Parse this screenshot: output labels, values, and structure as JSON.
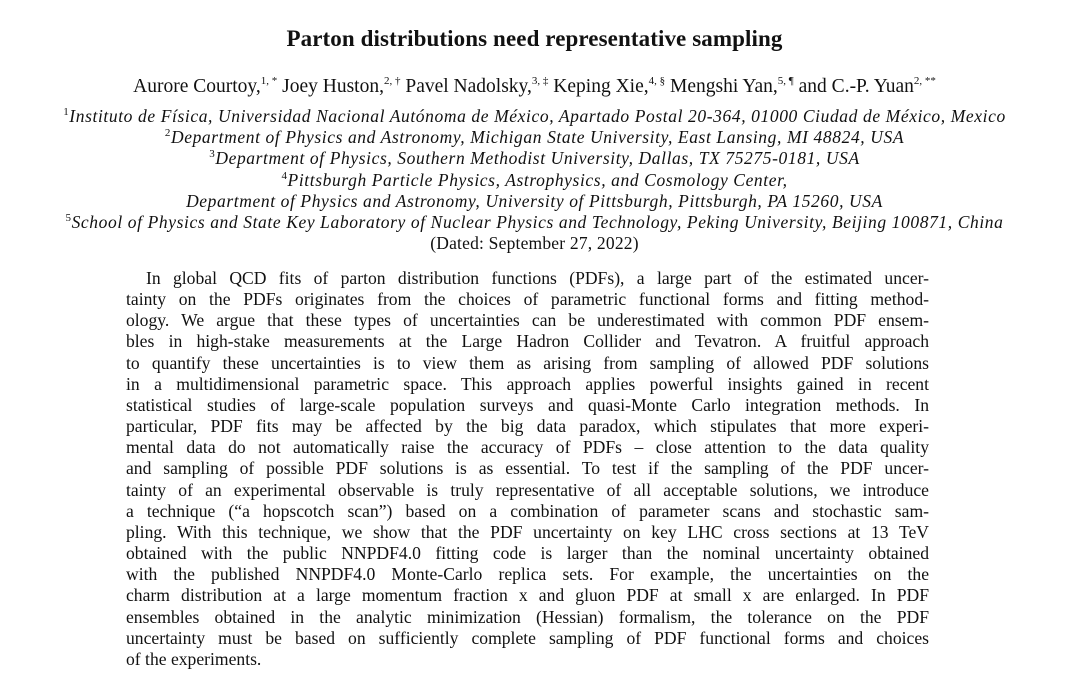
{
  "title": "Parton distributions need representative sampling",
  "authors": [
    {
      "name": "Aurore Courtoy,",
      "sup": "1, *"
    },
    {
      "name": "Joey Huston,",
      "sup": "2, †"
    },
    {
      "name": "Pavel Nadolsky,",
      "sup": "3, ‡"
    },
    {
      "name": "Keping Xie,",
      "sup": "4, §"
    },
    {
      "name": "Mengshi Yan,",
      "sup": "5, ¶"
    },
    {
      "name": "and C.-P. Yuan",
      "sup": "2, **"
    }
  ],
  "affiliations": [
    {
      "sup": "1",
      "text": "Instituto de Física, Universidad Nacional Autónoma de México, Apartado Postal 20-364, 01000 Ciudad de México, Mexico"
    },
    {
      "sup": "2",
      "text": "Department of Physics and Astronomy, Michigan State University, East Lansing, MI 48824, USA"
    },
    {
      "sup": "3",
      "text": "Department of Physics, Southern Methodist University, Dallas, TX 75275-0181, USA"
    },
    {
      "sup": "4",
      "text": "Pittsburgh Particle Physics, Astrophysics, and Cosmology Center,"
    },
    {
      "sup": "",
      "text": "Department of Physics and Astronomy, University of Pittsburgh, Pittsburgh, PA 15260, USA"
    },
    {
      "sup": "5",
      "text": "School of Physics and State Key Laboratory of Nuclear Physics and Technology, Peking University, Beijing 100871, China"
    }
  ],
  "dated": "(Dated: September 27, 2022)",
  "abstract_lines": [
    "In global QCD fits of parton distribution functions (PDFs), a large part of the estimated uncer-",
    "tainty on the PDFs originates from the choices of parametric functional forms and fitting method-",
    "ology. We argue that these types of uncertainties can be underestimated with common PDF ensem-",
    "bles in high-stake measurements at the Large Hadron Collider and Tevatron. A fruitful approach",
    "to quantify these uncertainties is to view them as arising from sampling of allowed PDF solutions",
    "in a multidimensional parametric space. This approach applies powerful insights gained in recent",
    "statistical studies of large-scale population surveys and quasi-Monte Carlo integration methods. In",
    "particular, PDF fits may be affected by the big data paradox, which stipulates that more experi-",
    "mental data do not automatically raise the accuracy of PDFs – close attention to the data quality",
    "and sampling of possible PDF solutions is as essential. To test if the sampling of the PDF uncer-",
    "tainty of an experimental observable is truly representative of all acceptable solutions, we introduce",
    "a technique (“a hopscotch scan”) based on a combination of parameter scans and stochastic sam-",
    "pling. With this technique, we show that the PDF uncertainty on key LHC cross sections at 13 TeV",
    "obtained with the public NNPDF4.0 fitting code is larger than the nominal uncertainty obtained",
    "with the published NNPDF4.0 Monte-Carlo replica sets. For example, the uncertainties on the",
    "charm distribution at a large momentum fraction x and gluon PDF at small x are enlarged. In PDF",
    "ensembles obtained in the analytic minimization (Hessian) formalism, the tolerance on the PDF",
    "uncertainty must be based on sufficiently complete sampling of PDF functional forms and choices",
    "of the experiments."
  ]
}
